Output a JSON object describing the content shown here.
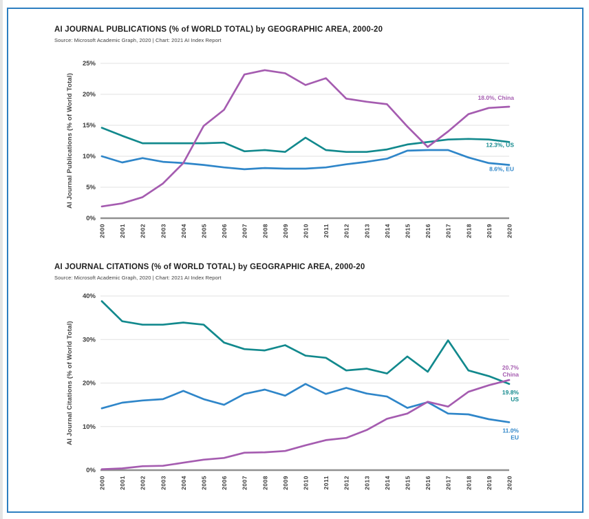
{
  "page": {
    "border_color": "#2c7ec0",
    "background": "#ffffff"
  },
  "chart_data": [
    {
      "type": "line",
      "title": "AI JOURNAL PUBLICATIONS (% of WORLD TOTAL) by GEOGRAPHIC AREA, 2000-20",
      "source": "Source: Microsoft Academic Graph, 2020 | Chart: 2021 AI Index Report",
      "ylabel": "AI Journal Publications (% of World Total)",
      "xlabel": "",
      "x": [
        2000,
        2001,
        2002,
        2003,
        2004,
        2005,
        2006,
        2007,
        2008,
        2009,
        2010,
        2011,
        2012,
        2013,
        2014,
        2015,
        2016,
        2017,
        2018,
        2019,
        2020
      ],
      "ylim": [
        0,
        25
      ],
      "ytick_step": 5,
      "ytick_suffix": "%",
      "grid": true,
      "legend_position": "end-of-line-labels",
      "series": [
        {
          "name": "US",
          "color": "#12898d",
          "end_label": "12.3%, US",
          "values": [
            14.6,
            13.3,
            12.1,
            12.1,
            12.1,
            12.1,
            12.2,
            10.8,
            11.0,
            10.7,
            13.0,
            11.0,
            10.7,
            10.7,
            11.1,
            11.9,
            12.3,
            12.7,
            12.8,
            12.7,
            12.3
          ]
        },
        {
          "name": "EU",
          "color": "#2f86c9",
          "end_label": "8.6%, EU",
          "values": [
            10.0,
            9.0,
            9.7,
            9.1,
            8.9,
            8.6,
            8.2,
            7.9,
            8.1,
            8.0,
            8.0,
            8.2,
            8.7,
            9.1,
            9.6,
            10.9,
            11.0,
            11.0,
            9.8,
            8.9,
            8.6
          ]
        },
        {
          "name": "China",
          "color": "#a55cb0",
          "end_label": "18.0%, China",
          "values": [
            1.9,
            2.4,
            3.4,
            5.6,
            8.9,
            14.9,
            17.5,
            23.2,
            23.9,
            23.4,
            21.5,
            22.6,
            19.3,
            18.8,
            18.4,
            14.8,
            11.5,
            14.0,
            16.8,
            17.8,
            18.0
          ]
        }
      ]
    },
    {
      "type": "line",
      "title": "AI JOURNAL CITATIONS (% of WORLD TOTAL) by GEOGRAPHIC AREA, 2000-20",
      "source": "Source: Microsoft Academic Graph, 2020 | Chart: 2021 AI Index Report",
      "ylabel": "AI Journal Citations (% of World Total)",
      "xlabel": "",
      "x": [
        2000,
        2001,
        2002,
        2003,
        2004,
        2005,
        2006,
        2007,
        2008,
        2009,
        2010,
        2011,
        2012,
        2013,
        2014,
        2015,
        2016,
        2017,
        2018,
        2019,
        2020
      ],
      "ylim": [
        0,
        40
      ],
      "ytick_step": 10,
      "ytick_suffix": "%",
      "grid": true,
      "legend_position": "end-of-line-labels",
      "series": [
        {
          "name": "US",
          "color": "#12898d",
          "end_label_lines": [
            "19.8%",
            "US"
          ],
          "values": [
            38.8,
            34.2,
            33.4,
            33.4,
            33.9,
            33.4,
            29.3,
            27.8,
            27.5,
            28.7,
            26.3,
            25.8,
            22.9,
            23.3,
            22.2,
            26.1,
            22.6,
            29.8,
            22.9,
            21.6,
            19.8
          ]
        },
        {
          "name": "EU",
          "color": "#2f86c9",
          "end_label_lines": [
            "11.0%",
            "EU"
          ],
          "values": [
            14.2,
            15.5,
            16.0,
            16.3,
            18.2,
            16.3,
            15.0,
            17.5,
            18.5,
            17.1,
            19.8,
            17.5,
            18.9,
            17.6,
            16.9,
            14.3,
            15.6,
            13.0,
            12.8,
            11.7,
            11.0
          ]
        },
        {
          "name": "China",
          "color": "#a55cb0",
          "end_label_lines": [
            "20.7%",
            "China"
          ],
          "values": [
            0.2,
            0.4,
            0.9,
            1.0,
            1.7,
            2.4,
            2.8,
            4.0,
            4.1,
            4.4,
            5.7,
            6.9,
            7.4,
            9.2,
            11.8,
            13.0,
            15.7,
            14.6,
            18.0,
            19.5,
            20.7
          ]
        }
      ]
    }
  ]
}
